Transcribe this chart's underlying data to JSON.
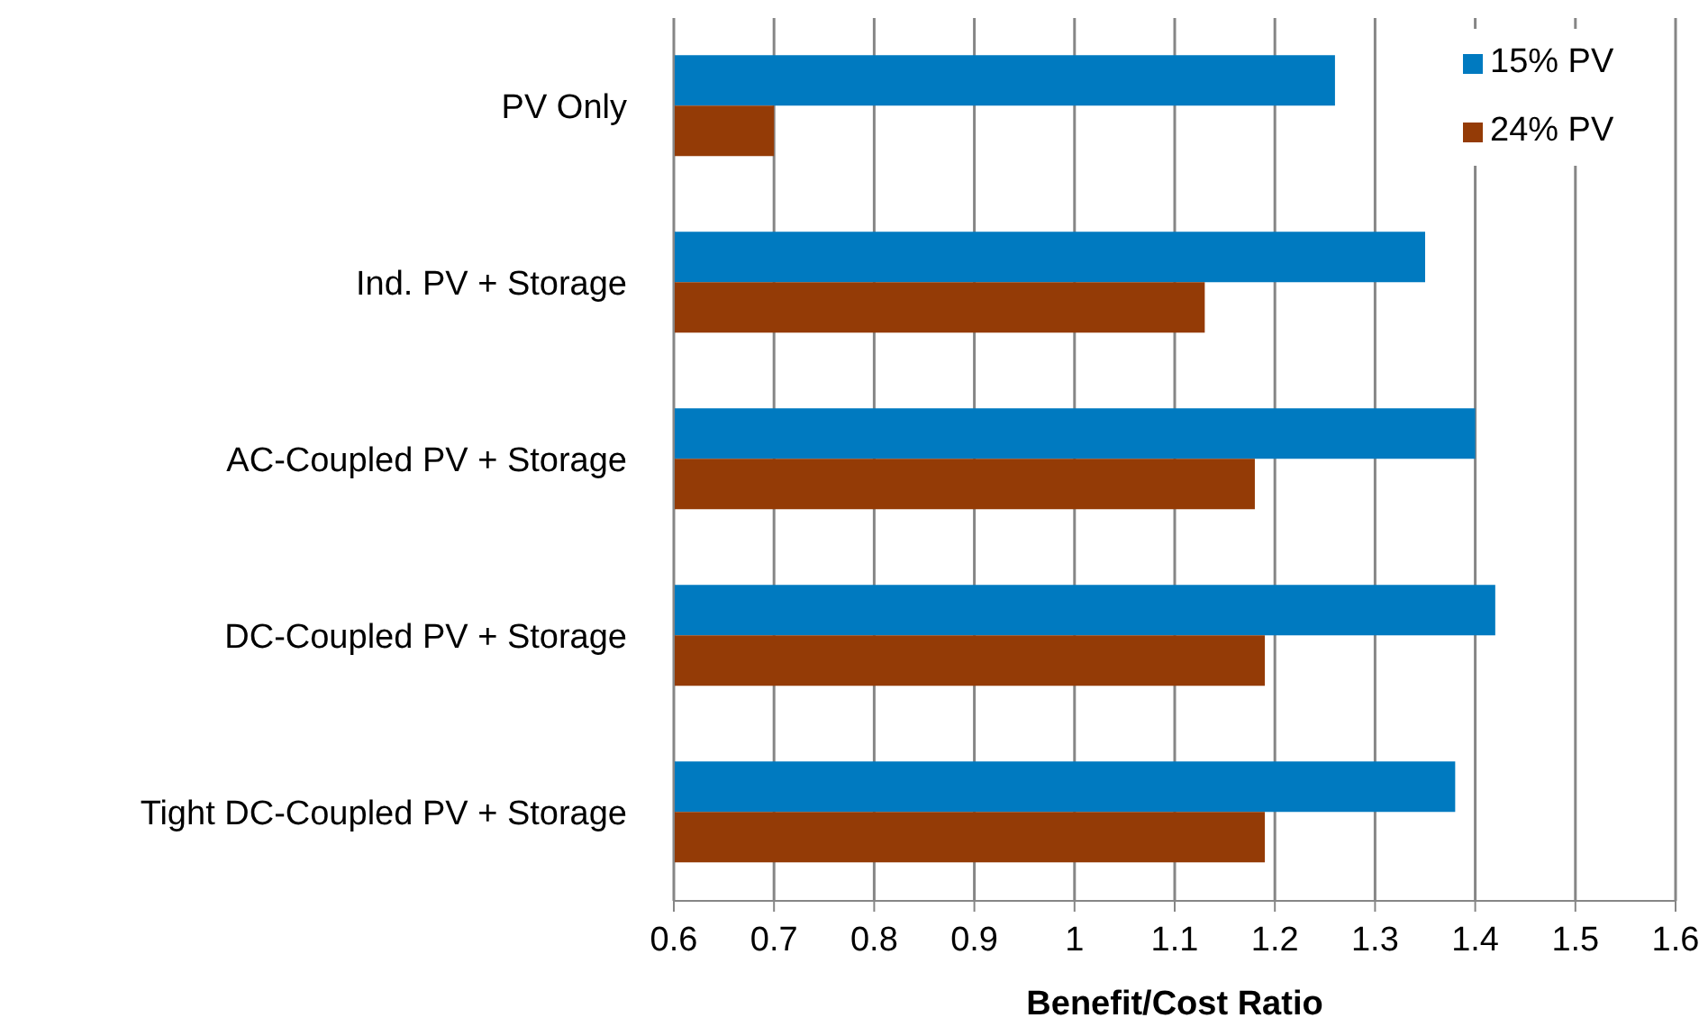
{
  "chart_data": {
    "type": "bar",
    "orientation": "horizontal",
    "xlabel": "Benefit/Cost Ratio",
    "categories": [
      "PV Only",
      "Ind. PV + Storage",
      "AC-Coupled PV + Storage",
      "DC-Coupled PV + Storage",
      "Tight DC-Coupled PV + Storage"
    ],
    "series": [
      {
        "name": "15% PV",
        "color": "#007ac0",
        "values": [
          1.26,
          1.35,
          1.4,
          1.42,
          1.38
        ]
      },
      {
        "name": "24% PV",
        "color": "#943b06",
        "values": [
          0.7,
          1.13,
          1.18,
          1.19,
          1.19
        ]
      }
    ],
    "xlim": [
      0.6,
      1.6
    ],
    "xticks": [
      0.6,
      0.7,
      0.8,
      0.9,
      1,
      1.1,
      1.2,
      1.3,
      1.4,
      1.5,
      1.6
    ],
    "grid": "x",
    "legend": "top right"
  }
}
